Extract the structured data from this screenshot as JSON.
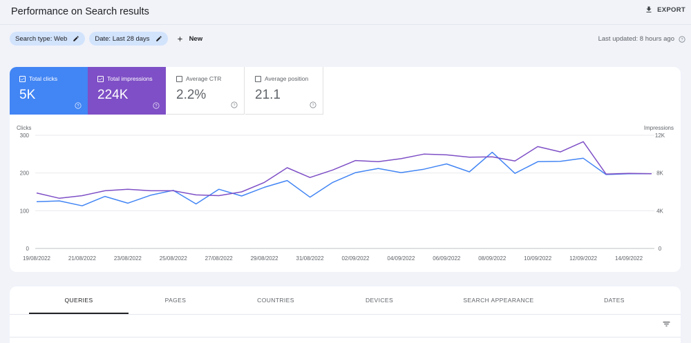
{
  "header": {
    "title": "Performance on Search results",
    "export_label": "EXPORT"
  },
  "filters": {
    "search_type": "Search type: Web",
    "date": "Date: Last 28 days",
    "new_label": "New",
    "last_updated": "Last updated: 8 hours ago"
  },
  "metrics": [
    {
      "label": "Total clicks",
      "value": "5K",
      "checked": true,
      "color": "#4285f4"
    },
    {
      "label": "Total impressions",
      "value": "224K",
      "checked": true,
      "color": "#7e4fc6"
    },
    {
      "label": "Average CTR",
      "value": "2.2%",
      "checked": false
    },
    {
      "label": "Average position",
      "value": "21.1",
      "checked": false
    }
  ],
  "chart_data": {
    "type": "line",
    "left_axis_title": "Clicks",
    "right_axis_title": "Impressions",
    "left_ticks": [
      "300",
      "200",
      "100",
      "0"
    ],
    "right_ticks": [
      "12K",
      "8K",
      "4K",
      "0"
    ],
    "ylim_left": [
      0,
      300
    ],
    "ylim_right": [
      0,
      12000
    ],
    "x_tick_labels": [
      "19/08/2022",
      "21/08/2022",
      "23/08/2022",
      "25/08/2022",
      "27/08/2022",
      "29/08/2022",
      "31/08/2022",
      "02/09/2022",
      "04/09/2022",
      "06/09/2022",
      "08/09/2022",
      "10/09/2022",
      "12/09/2022",
      "14/09/2022"
    ],
    "series": [
      {
        "name": "Clicks",
        "axis": "left",
        "color": "#4285f4",
        "values": [
          124,
          126,
          113,
          138,
          120,
          141,
          154,
          118,
          157,
          139,
          162,
          180,
          136,
          175,
          201,
          212,
          201,
          210,
          224,
          203,
          255,
          199,
          230,
          231,
          239,
          196,
          198,
          198
        ]
      },
      {
        "name": "Impressions",
        "axis": "right",
        "color": "#7e4fc6",
        "values": [
          5880,
          5320,
          5600,
          6120,
          6280,
          6120,
          6120,
          5680,
          5600,
          6000,
          7000,
          8560,
          7520,
          8320,
          9320,
          9200,
          9520,
          10000,
          9920,
          9680,
          9720,
          9280,
          10800,
          10240,
          11320,
          7880,
          7960,
          7920
        ]
      }
    ]
  },
  "tabs": {
    "items": [
      "QUERIES",
      "PAGES",
      "COUNTRIES",
      "DEVICES",
      "SEARCH APPEARANCE",
      "DATES"
    ],
    "active": 0
  }
}
